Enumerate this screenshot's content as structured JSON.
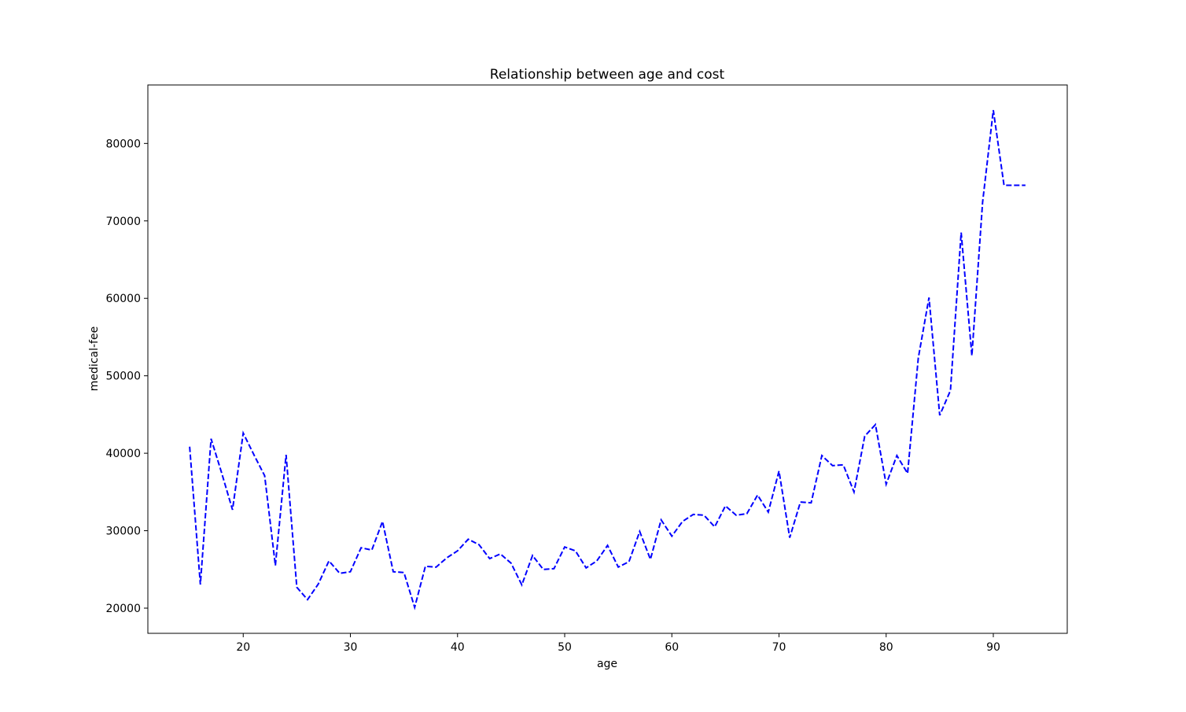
{
  "chart_data": {
    "type": "line",
    "title": "Relationship between age and cost",
    "xlabel": "age",
    "ylabel": "medical-fee",
    "x": [
      15,
      16,
      17,
      18,
      19,
      20,
      21,
      22,
      23,
      24,
      25,
      26,
      27,
      28,
      29,
      30,
      31,
      32,
      33,
      34,
      35,
      36,
      37,
      38,
      39,
      40,
      41,
      42,
      43,
      44,
      45,
      46,
      47,
      48,
      49,
      50,
      51,
      52,
      53,
      54,
      55,
      56,
      57,
      58,
      59,
      60,
      61,
      62,
      63,
      64,
      65,
      66,
      67,
      68,
      69,
      70,
      71,
      72,
      73,
      74,
      75,
      76,
      77,
      78,
      79,
      80,
      81,
      82,
      83,
      84,
      85,
      86,
      87,
      88,
      89,
      90,
      91,
      92,
      93
    ],
    "series": [
      {
        "name": "medical-fee",
        "color": "#0000ff",
        "dash": true,
        "values": [
          40850,
          23050,
          41870,
          37400,
          32700,
          42600,
          39800,
          37100,
          25500,
          39800,
          22700,
          21100,
          23100,
          26100,
          24500,
          24700,
          27800,
          27500,
          31200,
          24700,
          24600,
          20100,
          25400,
          25300,
          26500,
          27400,
          28900,
          28200,
          26400,
          27000,
          25800,
          23000,
          26800,
          25000,
          25100,
          27900,
          27400,
          25200,
          26100,
          28100,
          25300,
          26000,
          29900,
          26300,
          31400,
          29300,
          31200,
          32100,
          32000,
          30500,
          33200,
          32000,
          32200,
          34600,
          32400,
          37700,
          29100,
          33700,
          33600,
          39700,
          38400,
          38500,
          35000,
          42200,
          43700,
          36000,
          39700,
          37400,
          52300,
          60100,
          44900,
          48100,
          68500,
          52600,
          72400,
          84300,
          74600,
          74600,
          74600
        ]
      }
    ],
    "xlim": [
      11.1,
      96.9
    ],
    "xticks": [
      20,
      30,
      40,
      50,
      60,
      70,
      80,
      90
    ],
    "ylim": [
      16750,
      87550
    ],
    "yticks": [
      20000,
      30000,
      40000,
      50000,
      60000,
      70000,
      80000
    ],
    "grid": false,
    "legend": false
  }
}
